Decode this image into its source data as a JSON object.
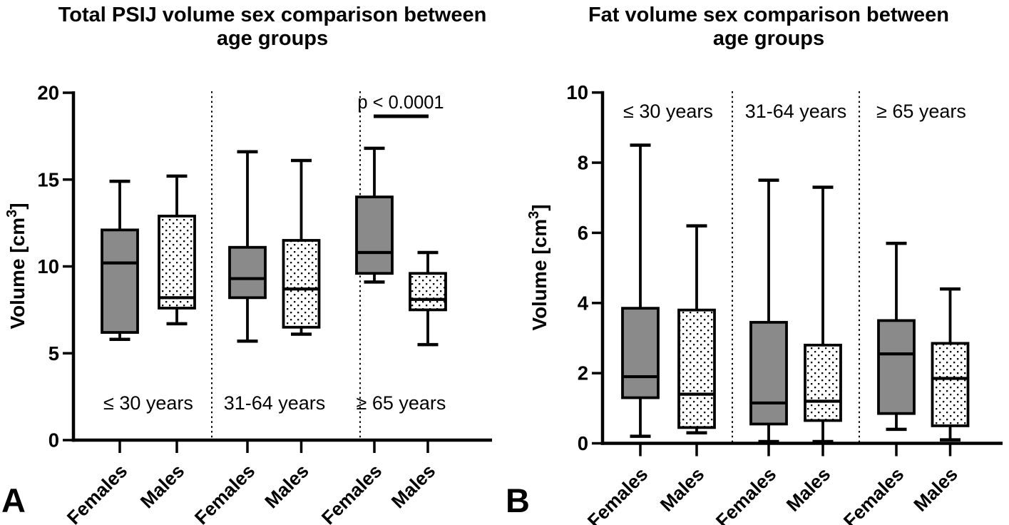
{
  "colors": {
    "female_box_fill": "#8a8a8a",
    "male_box_fill": "#ffffff",
    "stipple_dot": "#000000",
    "line_stroke": "#000000",
    "background": "#ffffff"
  },
  "chart_data": [
    {
      "type": "box",
      "panel_letter": "A",
      "title": "Total PSIJ volume sex comparison between age groups",
      "title_lines": [
        "Total PSIJ volume sex comparison between",
        "age groups"
      ],
      "ylabel": "Volume [cm³]",
      "xlabel": "",
      "ylim": [
        0,
        20
      ],
      "yticks": [
        "0",
        "5",
        "10",
        "15",
        "20"
      ],
      "grid": false,
      "legend_position": "none",
      "groups": [
        {
          "label": "≤ 30 years",
          "series": [
            {
              "name": "Females",
              "style": "gray",
              "min": 5.8,
              "q1": 6.2,
              "median": 10.2,
              "q3": 12.1,
              "max": 14.9
            },
            {
              "name": "Males",
              "style": "dotted",
              "min": 6.7,
              "q1": 7.6,
              "median": 8.2,
              "q3": 12.9,
              "max": 15.2
            }
          ]
        },
        {
          "label": "31-64 years",
          "series": [
            {
              "name": "Females",
              "style": "gray",
              "min": 5.7,
              "q1": 8.2,
              "median": 9.3,
              "q3": 11.1,
              "max": 16.6
            },
            {
              "name": "Males",
              "style": "dotted",
              "min": 6.1,
              "q1": 6.5,
              "median": 8.7,
              "q3": 11.5,
              "max": 16.1
            }
          ]
        },
        {
          "label": "≥ 65 years",
          "series": [
            {
              "name": "Females",
              "style": "gray",
              "min": 9.1,
              "q1": 9.6,
              "median": 10.8,
              "q3": 14.0,
              "max": 16.8
            },
            {
              "name": "Males",
              "style": "dotted",
              "min": 5.5,
              "q1": 7.5,
              "median": 8.1,
              "q3": 9.6,
              "max": 10.8
            }
          ]
        }
      ],
      "annotation": {
        "text": "p < 0.0001",
        "target_group": "≥ 65 years"
      }
    },
    {
      "type": "box",
      "panel_letter": "B",
      "title": "Fat volume sex comparison between age groups",
      "title_lines": [
        "Fat volume sex comparison between",
        "age groups"
      ],
      "ylabel": "Volume [cm³]",
      "xlabel": "",
      "ylim": [
        0,
        10
      ],
      "yticks": [
        "0",
        "2",
        "4",
        "6",
        "8",
        "10"
      ],
      "grid": false,
      "legend_position": "none",
      "groups": [
        {
          "label": "≤ 30 years",
          "series": [
            {
              "name": "Females",
              "style": "gray",
              "min": 0.2,
              "q1": 1.3,
              "median": 1.9,
              "q3": 3.85,
              "max": 8.5
            },
            {
              "name": "Males",
              "style": "dotted",
              "min": 0.3,
              "q1": 0.45,
              "median": 1.4,
              "q3": 3.8,
              "max": 6.2
            }
          ]
        },
        {
          "label": "31-64 years",
          "series": [
            {
              "name": "Females",
              "style": "gray",
              "min": 0.05,
              "q1": 0.55,
              "median": 1.15,
              "q3": 3.45,
              "max": 7.5
            },
            {
              "name": "Males",
              "style": "dotted",
              "min": 0.05,
              "q1": 0.65,
              "median": 1.2,
              "q3": 2.8,
              "max": 7.3
            }
          ]
        },
        {
          "label": "≥ 65 years",
          "series": [
            {
              "name": "Females",
              "style": "gray",
              "min": 0.4,
              "q1": 0.85,
              "median": 2.55,
              "q3": 3.5,
              "max": 5.7
            },
            {
              "name": "Males",
              "style": "dotted",
              "min": 0.1,
              "q1": 0.5,
              "median": 1.85,
              "q3": 2.85,
              "max": 4.4
            }
          ]
        }
      ]
    }
  ]
}
